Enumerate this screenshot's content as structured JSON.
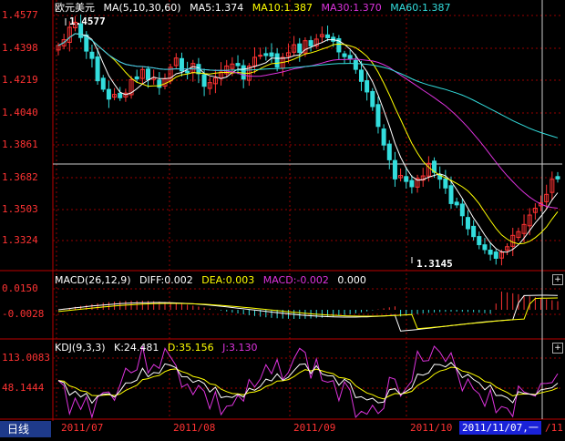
{
  "price_panel": {
    "symbol": "欧元美元",
    "ma_spec": "MA(5,10,30,60)",
    "ma5": "MA5:1.374",
    "ma10": "MA10:1.387",
    "ma30": "MA30:1.370",
    "ma60": "MA60:1.387",
    "high_marker": "1.4577",
    "low_marker": "1.3145",
    "y_ticks": [
      "1.4577",
      "1.4398",
      "1.4219",
      "1.4040",
      "1.3861",
      "1.3682",
      "1.3503",
      "1.3324"
    ]
  },
  "macd_panel": {
    "spec": "MACD(26,12,9)",
    "diff": "DIFF:0.002",
    "dea": "DEA:0.003",
    "macd": "MACD:-0.002",
    "extra": "0.000",
    "y_ticks": [
      "0.0150",
      "-0.0028"
    ]
  },
  "kdj_panel": {
    "spec": "KDJ(9,3,3)",
    "k": "K:24.481",
    "d": "D:35.156",
    "j": "J:3.130",
    "y_ticks": [
      "113.0083",
      "48.1444"
    ]
  },
  "x_labels": [
    "2011/07",
    "2011/08",
    "2011/09",
    "2011/10"
  ],
  "bottom_tab": "日线",
  "cursor_date": "2011/11/07,一",
  "cursor_date_tail": "/11",
  "plus_symbol": "+",
  "colors": {
    "up": "#ff3333",
    "down": "#33dddd",
    "ma5": "#ffffff",
    "ma10": "#ffff00",
    "ma30": "#dd33dd",
    "ma60": "#33dddd",
    "grid": "#990000"
  }
}
